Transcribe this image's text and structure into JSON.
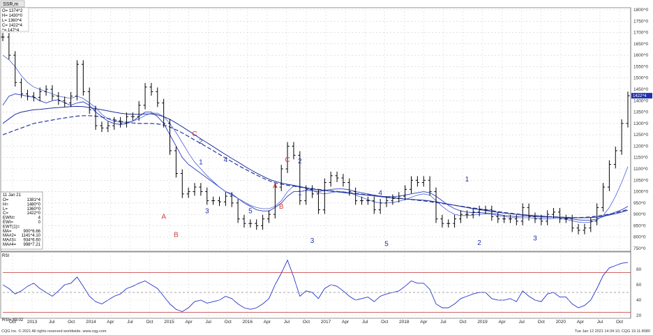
{
  "window": {
    "tab_label": "SSR,m",
    "footer_left": "CQG Inc. © 2021 All rights reserved worldwide. www.cqg.com",
    "footer_right": "Tue Jan 12 2021 14:34:10, CQG 19.11.8080"
  },
  "top_quote": {
    "lines": [
      "O= 1374^2",
      "H= 1430^0",
      "L= 1360^4",
      "C= 1422^4",
      "^= 147^4"
    ]
  },
  "info_box": {
    "date": "11 Jan 21",
    "rows": [
      {
        "k": "O=",
        "v": "1381^4"
      },
      {
        "k": "H=",
        "v": "1480^0"
      },
      {
        "k": "L=",
        "v": "1360^0"
      },
      {
        "k": "C=",
        "v": "1422^0"
      },
      {
        "k": "EWN=",
        "v": "4"
      },
      {
        "k": "EWI=",
        "v": "0"
      },
      {
        "k": "EWT(1)=",
        "v": ""
      },
      {
        "k": "MA=",
        "v": "900^6.66"
      },
      {
        "k": "MA#2=",
        "v": "1141^4.10"
      },
      {
        "k": "MA#3=",
        "v": "934^6.60"
      },
      {
        "k": "MA#4=",
        "v": "998^7.21"
      }
    ],
    "rsi_label": "RSI",
    "rsi_value_label": "RSI= 89.02"
  },
  "chart_data": [
    {
      "type": "ohlc",
      "title": "SSR,m",
      "ylim": [
        750,
        1800
      ],
      "y_ticks": [
        "1800^0",
        "1750^0",
        "1700^0",
        "1650^0",
        "1600^0",
        "1550^0",
        "1500^0",
        "1450^0",
        "1400^0",
        "1350^0",
        "1300^0",
        "1250^0",
        "1200^0",
        "1150^0",
        "1100^0",
        "1050^0",
        "1000^0",
        "950^0",
        "900^0",
        "850^0",
        "800^0",
        "750^0"
      ],
      "x_ticks": [
        "Oct",
        "2013",
        "Jul",
        "Oct",
        "2014",
        "Apr",
        "Jul",
        "Oct",
        "2015",
        "Apr",
        "Jul",
        "Oct",
        "2016",
        "Apr",
        "Jul",
        "Oct",
        "2017",
        "Apr",
        "Jul",
        "Oct",
        "2018",
        "Apr",
        "Jul",
        "Oct",
        "2019",
        "Apr",
        "Jul",
        "Oct",
        "2020",
        "Apr",
        "Jul",
        "Oct"
      ],
      "last_price_label": "1422^4",
      "series": [
        {
          "name": "Price",
          "values": [
            1680,
            1600,
            1480,
            1430,
            1420,
            1415,
            1440,
            1450,
            1420,
            1400,
            1390,
            1420,
            1560,
            1440,
            1360,
            1290,
            1280,
            1290,
            1310,
            1300,
            1330,
            1330,
            1380,
            1460,
            1440,
            1390,
            1300,
            1180,
            1080,
            990,
            1000,
            1020,
            1000,
            960,
            960,
            955,
            980,
            950,
            880,
            860,
            860,
            850,
            880,
            900,
            1020,
            1100,
            1200,
            1160,
            960,
            1010,
            990,
            920,
            1040,
            1070,
            1060,
            1040,
            1000,
            960,
            960,
            960,
            920,
            950,
            960,
            970,
            980,
            1010,
            1050,
            1040,
            1050,
            1000,
            880,
            860,
            860,
            880,
            900,
            900,
            910,
            920,
            920,
            890,
            880,
            880,
            880,
            870,
            930,
            890,
            880,
            870,
            900,
            910,
            880,
            880,
            840,
            830,
            840,
            870,
            930,
            1020,
            1120,
            1180,
            1300,
            1422
          ]
        },
        {
          "name": "MA",
          "values": [
            1380,
            1420,
            1430,
            1425,
            1420,
            1415,
            1400,
            1390,
            1400,
            1405,
            1390,
            1380,
            1390,
            1395,
            1380,
            1350,
            1330,
            1310,
            1300,
            1295,
            1300,
            1310,
            1330,
            1350,
            1350,
            1330,
            1300,
            1250,
            1200,
            1150,
            1120,
            1100,
            1080,
            1060,
            1040,
            1020,
            1000,
            990,
            970,
            950,
            935,
            920,
            915,
            915,
            930,
            950,
            980,
            1000,
            1000,
            1005,
            1005,
            1000,
            1005,
            1010,
            1012,
            1012,
            1008,
            1000,
            995,
            990,
            985,
            980,
            978,
            978,
            980,
            985,
            990,
            995,
            1000,
            995,
            980,
            960,
            940,
            925,
            915,
            910,
            908,
            908,
            906,
            904,
            900,
            895,
            893,
            890,
            893,
            892,
            890,
            888,
            888,
            888,
            886,
            884,
            880,
            876,
            874,
            875,
            880,
            890,
            900,
            910,
            920,
            935
          ]
        },
        {
          "name": "MA#2",
          "values": [
            1300,
            1320,
            1340,
            1350,
            1355,
            1360,
            1362,
            1365,
            1368,
            1370,
            1372,
            1374,
            1375,
            1374,
            1370,
            1365,
            1360,
            1355,
            1350,
            1345,
            1342,
            1340,
            1340,
            1342,
            1342,
            1338,
            1330,
            1318,
            1302,
            1285,
            1268,
            1250,
            1232,
            1215,
            1198,
            1180,
            1163,
            1146,
            1130,
            1113,
            1097,
            1082,
            1068,
            1055,
            1045,
            1038,
            1032,
            1028,
            1022,
            1017,
            1012,
            1008,
            1005,
            1002,
            999,
            996,
            993,
            990,
            987,
            984,
            981,
            978,
            975,
            972,
            970,
            968,
            966,
            964,
            962,
            959,
            955,
            950,
            945,
            940,
            935,
            930,
            925,
            921,
            917,
            913,
            909,
            906,
            903,
            900,
            898,
            896,
            894,
            892,
            890,
            888,
            887,
            886,
            885,
            885,
            885,
            886,
            888,
            892,
            897,
            903,
            910,
            918
          ]
        },
        {
          "name": "MA#3",
          "values": [
            1600,
            1580,
            1550,
            1510,
            1480,
            1460,
            1450,
            1440,
            1430,
            1420,
            1415,
            1410,
            1420,
            1410,
            1390,
            1370,
            1340,
            1320,
            1310,
            1305,
            1305,
            1310,
            1320,
            1335,
            1345,
            1345,
            1330,
            1300,
            1260,
            1215,
            1170,
            1130,
            1100,
            1070,
            1045,
            1020,
            1000,
            985,
            970,
            955,
            940,
            930,
            925,
            925,
            935,
            960,
            1000,
            1025,
            1020,
            1015,
            1005,
            995,
            990,
            995,
            1000,
            1000,
            995,
            985,
            975,
            965,
            955,
            950,
            950,
            952,
            958,
            965,
            975,
            985,
            990,
            985,
            960,
            935,
            915,
            900,
            895,
            895,
            897,
            900,
            902,
            900,
            895,
            890,
            887,
            885,
            885,
            885,
            883,
            880,
            880,
            882,
            882,
            878,
            872,
            866,
            864,
            866,
            875,
            895,
            930,
            980,
            1040,
            1110
          ]
        },
        {
          "name": "MA#4",
          "values": [
            1250,
            1260,
            1270,
            1280,
            1290,
            1300,
            1305,
            1310,
            1315,
            1320,
            1324,
            1328,
            1332,
            1334,
            1334,
            1332,
            1328,
            1322,
            1316,
            1310,
            1305,
            1302,
            1300,
            1300,
            1300,
            1298,
            1293,
            1284,
            1272,
            1258,
            1243,
            1227,
            1212,
            1196,
            1180,
            1164,
            1148,
            1132,
            1116,
            1101,
            1087,
            1073,
            1060,
            1048,
            1039,
            1033,
            1028,
            1024,
            1020,
            1016,
            1013,
            1010,
            1007,
            1004,
            1001,
            998,
            995,
            992,
            989,
            986,
            983,
            980,
            977,
            974,
            971,
            968,
            965,
            962,
            959,
            956,
            952,
            948,
            944,
            940,
            936,
            932,
            928,
            924,
            920,
            916,
            912,
            908,
            905,
            902,
            899,
            896,
            894,
            892,
            890,
            889,
            888,
            887,
            886,
            886,
            887,
            889,
            892,
            896,
            901,
            907,
            914,
            922
          ]
        }
      ],
      "wave_labels": [
        {
          "text": "A",
          "color": "#d23c3c"
        },
        {
          "text": "B",
          "color": "#d23c3c"
        },
        {
          "text": "C",
          "color": "#d23c3c"
        },
        {
          "text": "2",
          "color": "#2233aa"
        },
        {
          "text": "1",
          "color": "#2233aa"
        },
        {
          "text": "3",
          "color": "#2233aa"
        },
        {
          "text": "4",
          "color": "#2233aa"
        },
        {
          "text": "5",
          "color": "#2233aa"
        },
        {
          "text": "A",
          "color": "#d23c3c"
        },
        {
          "text": "B",
          "color": "#d23c3c"
        },
        {
          "text": "C",
          "color": "#d23c3c"
        },
        {
          "text": "2",
          "color": "#2233aa"
        },
        {
          "text": "1",
          "color": "#2233aa"
        },
        {
          "text": "3",
          "color": "#2233aa"
        },
        {
          "text": "4",
          "color": "#2233aa"
        },
        {
          "text": "5",
          "color": "#2233aa"
        },
        {
          "text": "1",
          "color": "#2233aa"
        },
        {
          "text": "2",
          "color": "#2233aa"
        },
        {
          "text": "3",
          "color": "#2233aa"
        }
      ]
    },
    {
      "type": "line",
      "title": "RSI",
      "ylim": [
        20,
        100
      ],
      "y_ticks": [
        "80",
        "60",
        "40",
        "20"
      ],
      "reference_lines": [
        {
          "value": 76,
          "color": "#c03030"
        },
        {
          "value": 24,
          "color": "#c03030"
        },
        {
          "value": 50,
          "color": "#888888"
        }
      ],
      "series": [
        {
          "name": "RSI",
          "values": [
            60,
            55,
            48,
            52,
            58,
            62,
            55,
            50,
            45,
            52,
            60,
            62,
            70,
            58,
            45,
            38,
            35,
            40,
            45,
            48,
            55,
            58,
            62,
            65,
            60,
            55,
            45,
            35,
            28,
            25,
            30,
            38,
            40,
            36,
            38,
            40,
            45,
            42,
            35,
            30,
            28,
            30,
            35,
            42,
            60,
            75,
            92,
            70,
            45,
            52,
            50,
            42,
            55,
            60,
            58,
            52,
            45,
            40,
            42,
            44,
            38,
            45,
            48,
            50,
            52,
            58,
            65,
            62,
            62,
            54,
            35,
            30,
            30,
            35,
            42,
            45,
            48,
            50,
            50,
            42,
            40,
            40,
            42,
            38,
            52,
            45,
            40,
            38,
            48,
            50,
            44,
            44,
            35,
            30,
            33,
            40,
            55,
            72,
            82,
            85,
            88,
            89
          ]
        }
      ]
    }
  ]
}
